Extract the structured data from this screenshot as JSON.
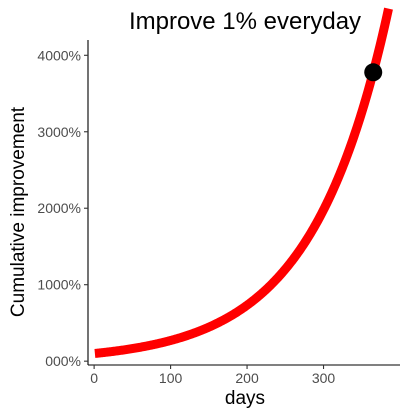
{
  "chart_data": {
    "type": "line",
    "title": "Improve 1% everyday",
    "xlabel": "days",
    "ylabel": "Cumulative improvement",
    "x_ticks": [
      0,
      100,
      200,
      300
    ],
    "y_ticks": [
      0,
      1000,
      2000,
      3000,
      4000
    ],
    "y_tick_labels": [
      "000%",
      "1000%",
      "2000%",
      "3000%",
      "4000%"
    ],
    "xlim": [
      -8,
      400
    ],
    "ylim": [
      -50,
      4200
    ],
    "grid": false,
    "legend": "none",
    "series": [
      {
        "color": "#ff0000",
        "growth_rate": 0.01,
        "x_range": [
          1,
          385
        ],
        "points": [
          {
            "x": 1,
            "y": 101
          },
          {
            "x": 50,
            "y": 164
          },
          {
            "x": 100,
            "y": 270
          },
          {
            "x": 150,
            "y": 445
          },
          {
            "x": 200,
            "y": 732
          },
          {
            "x": 250,
            "y": 1203
          },
          {
            "x": 300,
            "y": 1979
          },
          {
            "x": 350,
            "y": 3256
          },
          {
            "x": 385,
            "y": 4603
          }
        ]
      }
    ],
    "highlight_point": {
      "x": 365,
      "y": 3778,
      "color": "#000000"
    }
  }
}
